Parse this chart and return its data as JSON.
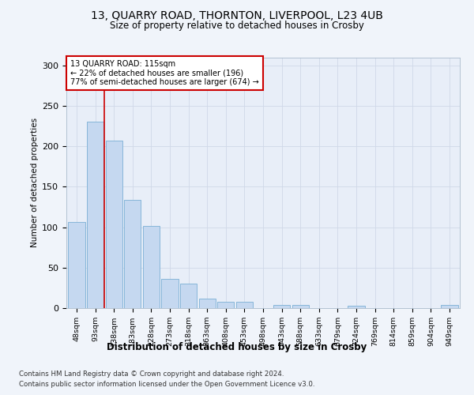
{
  "title1": "13, QUARRY ROAD, THORNTON, LIVERPOOL, L23 4UB",
  "title2": "Size of property relative to detached houses in Crosby",
  "xlabel": "Distribution of detached houses by size in Crosby",
  "ylabel": "Number of detached properties",
  "categories": [
    "48sqm",
    "93sqm",
    "138sqm",
    "183sqm",
    "228sqm",
    "273sqm",
    "318sqm",
    "363sqm",
    "408sqm",
    "453sqm",
    "498sqm",
    "543sqm",
    "588sqm",
    "633sqm",
    "679sqm",
    "724sqm",
    "769sqm",
    "814sqm",
    "859sqm",
    "904sqm",
    "949sqm"
  ],
  "values": [
    106,
    230,
    207,
    134,
    102,
    36,
    30,
    12,
    8,
    8,
    0,
    4,
    4,
    0,
    0,
    3,
    0,
    0,
    0,
    0,
    4
  ],
  "bar_color": "#c5d8f0",
  "bar_edge_color": "#7bafd4",
  "vline_position": 1.5,
  "vline_color": "#cc0000",
  "annotation_text": "13 QUARRY ROAD: 115sqm\n← 22% of detached houses are smaller (196)\n77% of semi-detached houses are larger (674) →",
  "annotation_box_color": "#ffffff",
  "annotation_box_edge_color": "#cc0000",
  "ylim": [
    0,
    310
  ],
  "yticks": [
    0,
    50,
    100,
    150,
    200,
    250,
    300
  ],
  "grid_color": "#d0d8e8",
  "footnote1": "Contains HM Land Registry data © Crown copyright and database right 2024.",
  "footnote2": "Contains public sector information licensed under the Open Government Licence v3.0.",
  "bg_color": "#e8eef8",
  "fig_bg_color": "#f0f4fa"
}
